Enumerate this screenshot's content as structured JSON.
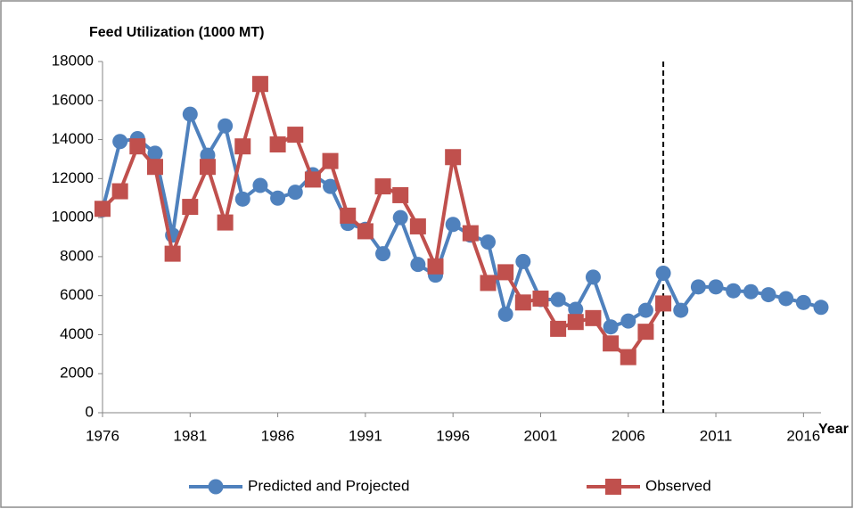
{
  "chart_data": {
    "type": "line",
    "y_axis_label": "Feed Utilization (1000 MT)",
    "x_axis_label": "Year",
    "x": [
      1976,
      1977,
      1978,
      1979,
      1980,
      1981,
      1982,
      1983,
      1984,
      1985,
      1986,
      1987,
      1988,
      1989,
      1990,
      1991,
      1992,
      1993,
      1994,
      1995,
      1996,
      1997,
      1998,
      1999,
      2000,
      2001,
      2002,
      2003,
      2004,
      2005,
      2006,
      2007,
      2008,
      2009,
      2010,
      2011,
      2012,
      2013,
      2014,
      2015,
      2016,
      2017
    ],
    "series": [
      {
        "name": "Predicted and Projected",
        "color": "#4f81bd",
        "marker": "circle",
        "values": [
          10400,
          13900,
          14050,
          13300,
          9100,
          15300,
          13200,
          14700,
          10950,
          11650,
          11000,
          11300,
          12200,
          11600,
          9700,
          9400,
          8150,
          10000,
          7600,
          7050,
          9650,
          9100,
          8750,
          5050,
          7750,
          5800,
          5800,
          5300,
          6950,
          4400,
          4700,
          5250,
          7150,
          5250,
          6450,
          6450,
          6250,
          6200,
          6050,
          5850,
          5650,
          5400
        ]
      },
      {
        "name": "Observed",
        "color": "#c0504d",
        "marker": "square",
        "values": [
          10450,
          11350,
          13650,
          12600,
          8150,
          10550,
          12600,
          9750,
          13650,
          16850,
          13750,
          14250,
          11950,
          12900,
          10100,
          9300,
          11600,
          11150,
          9550,
          7500,
          13100,
          9200,
          6650,
          7200,
          5650,
          5850,
          4300,
          4650,
          4850,
          3550,
          2850,
          4150,
          5600,
          null,
          null,
          null,
          null,
          null,
          null,
          null,
          null,
          null
        ]
      }
    ],
    "xlim": [
      1976,
      2017
    ],
    "xticks": [
      1976,
      1981,
      1986,
      1991,
      1996,
      2001,
      2006,
      2011,
      2016
    ],
    "ylim": [
      0,
      18000
    ],
    "yticks": [
      0,
      2000,
      4000,
      6000,
      8000,
      10000,
      12000,
      14000,
      16000,
      18000
    ],
    "reference_x": 2008,
    "grid": false,
    "legend": "bottom"
  }
}
